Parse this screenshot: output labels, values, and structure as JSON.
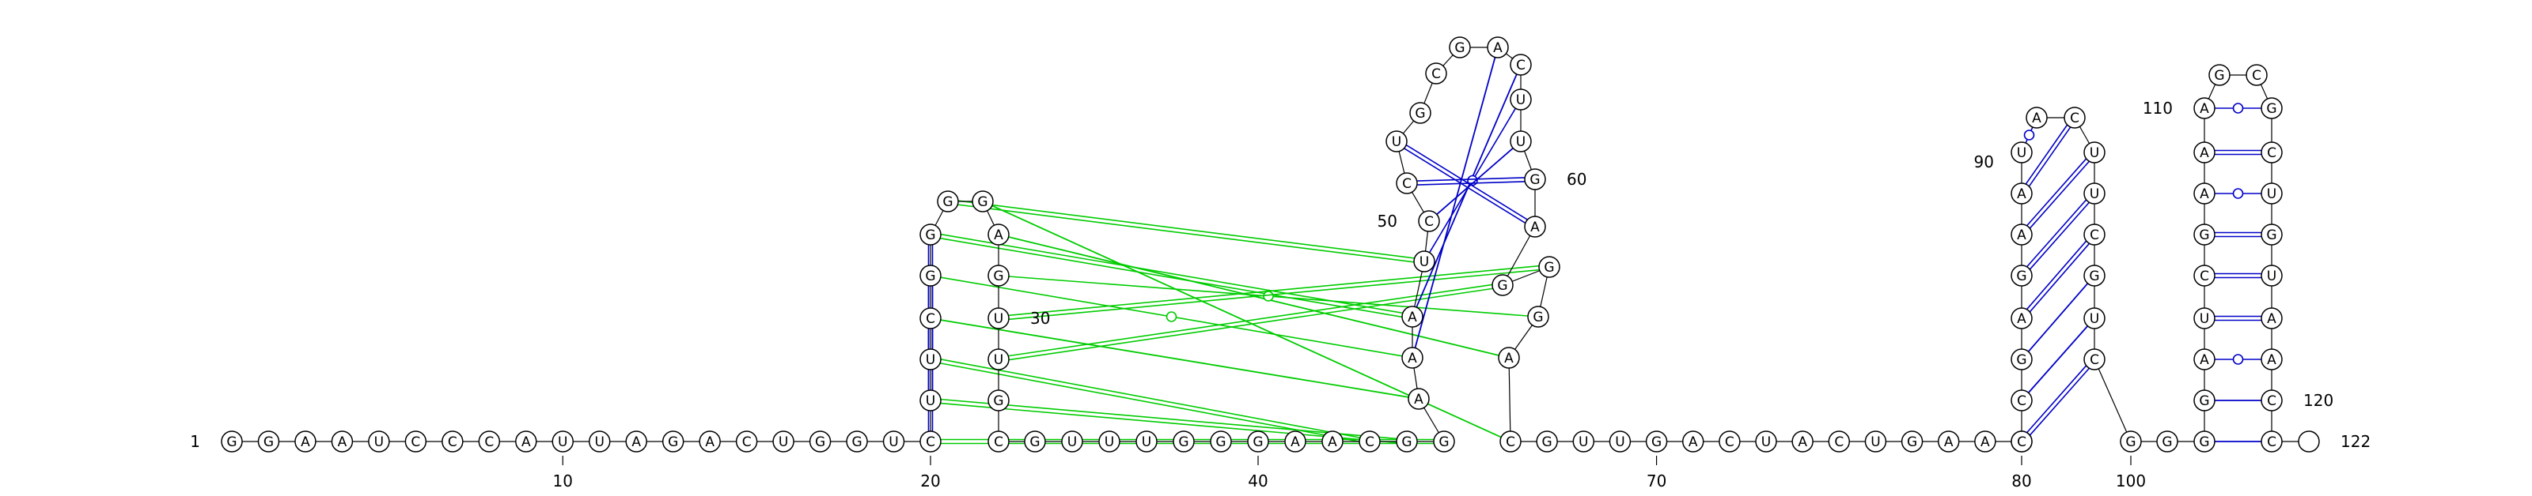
{
  "molecule": {
    "sequence": "GGAAUCCCAUUAGACUGGUCUUCGGGGAGUUGCGUUUGGGAACGGAAAUCCUGCGACUUGAGGGACGUUGACUACUGAACCCGCCGAGAAUACUUCGUCGGGGAUCGAAAGCGCUGUAACC",
    "length": 122
  },
  "position_labels": [
    {
      "nt": 1,
      "text": "1"
    },
    {
      "nt": 10,
      "text": "10"
    },
    {
      "nt": 20,
      "text": "20"
    },
    {
      "nt": 30,
      "text": "30"
    },
    {
      "nt": 40,
      "text": "40"
    },
    {
      "nt": 50,
      "text": "50"
    },
    {
      "nt": 60,
      "text": "60"
    },
    {
      "nt": 70,
      "text": "70"
    },
    {
      "nt": 80,
      "text": "80"
    },
    {
      "nt": 90,
      "text": "90"
    },
    {
      "nt": 100,
      "text": "100"
    },
    {
      "nt": 110,
      "text": "110"
    },
    {
      "nt": 120,
      "text": "120"
    },
    {
      "nt": 122,
      "text": "122"
    }
  ],
  "base_pairs": [
    {
      "i": 20,
      "j": 25,
      "class": "canonical-strong"
    },
    {
      "i": 21,
      "j": 24,
      "class": "canonical-strong"
    },
    {
      "i": 22,
      "j": 23,
      "class": "canonical-strong"
    },
    {
      "i": 47,
      "j": 56,
      "class": "canonical-weak"
    },
    {
      "i": 48,
      "j": 57,
      "class": "canonical-weak"
    },
    {
      "i": 49,
      "j": 58,
      "class": "wobble"
    },
    {
      "i": 50,
      "j": 59,
      "class": "canonical-weak"
    },
    {
      "i": 51,
      "j": 60,
      "class": "canonical-strong"
    },
    {
      "i": 52,
      "j": 61,
      "class": "canonical-strong"
    },
    {
      "i": 84,
      "j": 99,
      "class": "canonical-strong"
    },
    {
      "i": 85,
      "j": 98,
      "class": "canonical-weak"
    },
    {
      "i": 86,
      "j": 97,
      "class": "canonical-weak"
    },
    {
      "i": 87,
      "j": 96,
      "class": "canonical-strong"
    },
    {
      "i": 88,
      "j": 95,
      "class": "canonical-strong"
    },
    {
      "i": 89,
      "j": 94,
      "class": "canonical-strong"
    },
    {
      "i": 90,
      "j": 93,
      "class": "canonical-strong"
    },
    {
      "i": 91,
      "j": 92,
      "class": "wobble"
    },
    {
      "i": 102,
      "j": 121,
      "class": "canonical-weak"
    },
    {
      "i": 103,
      "j": 120,
      "class": "canonical-weak"
    },
    {
      "i": 104,
      "j": 119,
      "class": "wobble"
    },
    {
      "i": 105,
      "j": 118,
      "class": "canonical-strong"
    },
    {
      "i": 106,
      "j": 117,
      "class": "canonical-strong"
    },
    {
      "i": 107,
      "j": 116,
      "class": "canonical-strong"
    },
    {
      "i": 108,
      "j": 115,
      "class": "wobble"
    },
    {
      "i": 109,
      "j": 114,
      "class": "canonical-strong"
    },
    {
      "i": 110,
      "j": 113,
      "class": "wobble"
    }
  ],
  "tertiary_pairs": [
    {
      "i": 20,
      "j": 45,
      "class": "canonical-strong"
    },
    {
      "i": 21,
      "j": 44,
      "class": "canonical-strong"
    },
    {
      "i": 22,
      "j": 43,
      "class": "canonical-strong"
    },
    {
      "i": 23,
      "j": 46,
      "class": "canonical-weak"
    },
    {
      "i": 24,
      "j": 47,
      "class": "wobble"
    },
    {
      "i": 25,
      "j": 48,
      "class": "canonical-strong"
    },
    {
      "i": 26,
      "j": 49,
      "class": "canonical-strong"
    },
    {
      "i": 27,
      "j": 66,
      "class": "canonical-weak"
    },
    {
      "i": 28,
      "j": 65,
      "class": "canonical-weak"
    },
    {
      "i": 29,
      "j": 64,
      "class": "wobble"
    },
    {
      "i": 30,
      "j": 63,
      "class": "canonical-strong"
    },
    {
      "i": 31,
      "j": 62,
      "class": "canonical-strong"
    }
  ],
  "colors": {
    "secondary_pair": "#0000c8",
    "tertiary_pair": "#00cc00",
    "ring": "#000000"
  }
}
